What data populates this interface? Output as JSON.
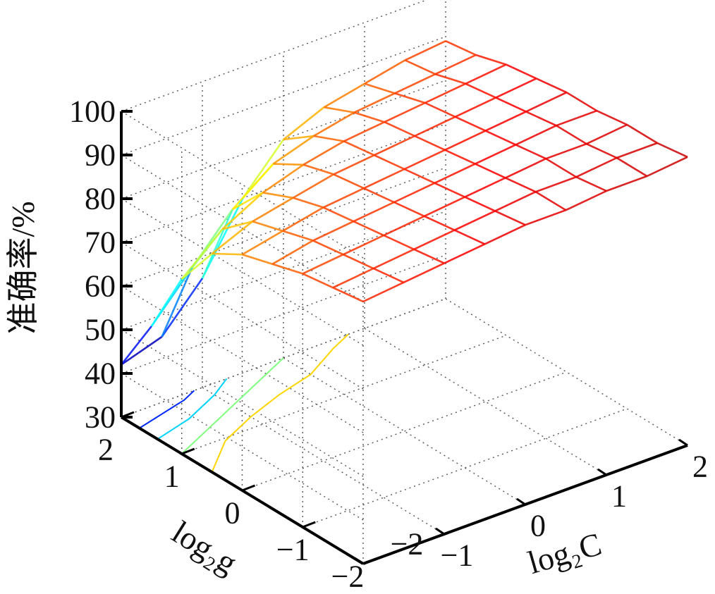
{
  "chart_data": {
    "type": "surface-mesh-with-contours",
    "xlabel": "log₂C",
    "ylabel": "log₂g",
    "zlabel": "准确率/%",
    "xlim": [
      -2,
      2
    ],
    "ylim": [
      -2,
      2
    ],
    "zlim": [
      30,
      100
    ],
    "grid": true,
    "colormap": "jet",
    "x_ticks": [
      "−2",
      "−1",
      "0",
      "1",
      "2"
    ],
    "x_tick_values": [
      -2,
      -1,
      0,
      1,
      2
    ],
    "y_ticks": [
      "−2",
      "−1",
      "0",
      "1",
      "2"
    ],
    "y_tick_values": [
      -2,
      -1,
      0,
      1,
      2
    ],
    "z_ticks": [
      "30",
      "40",
      "50",
      "60",
      "70",
      "80",
      "90",
      "100"
    ],
    "z_tick_values": [
      30,
      40,
      50,
      60,
      70,
      80,
      90,
      100
    ],
    "x": [
      -2,
      -1.5,
      -1,
      -0.5,
      0,
      0.5,
      1,
      1.5,
      2
    ],
    "y": [
      -2,
      -1.5,
      -1,
      -0.5,
      0,
      0.5,
      1,
      1.5,
      2
    ],
    "z": [
      [
        90,
        91,
        92,
        93,
        94,
        94,
        95,
        95,
        96
      ],
      [
        89,
        90,
        91,
        92,
        93,
        94,
        94,
        95,
        95
      ],
      [
        88,
        89,
        90,
        91,
        92,
        93,
        94,
        94,
        95
      ],
      [
        86,
        88,
        89,
        90,
        91,
        92,
        93,
        94,
        94
      ],
      [
        84,
        86,
        88,
        89,
        90,
        91,
        92,
        93,
        94
      ],
      [
        80,
        84,
        86,
        88,
        89,
        90,
        91,
        92,
        93
      ],
      [
        70,
        78,
        83,
        86,
        88,
        89,
        90,
        91,
        92
      ],
      [
        55,
        65,
        75,
        82,
        85,
        87,
        88,
        89,
        90
      ],
      [
        42,
        45,
        55,
        70,
        80,
        84,
        86,
        88,
        89
      ]
    ],
    "contours": [
      {
        "level": 50,
        "points": [
          [
            -2,
            1.7
          ],
          [
            -1.3,
            1.9
          ],
          [
            -1.1,
            2
          ]
        ]
      },
      {
        "level": 60,
        "points": [
          [
            -2,
            1.4
          ],
          [
            -1.5,
            1.55
          ],
          [
            -1,
            1.8
          ],
          [
            -0.7,
            2
          ]
        ]
      },
      {
        "level": 70,
        "points": [
          [
            -2,
            1.0
          ],
          [
            -1.5,
            1.25
          ],
          [
            -1,
            1.5
          ],
          [
            -0.5,
            1.75
          ],
          [
            0,
            2
          ]
        ]
      },
      {
        "level": 80,
        "points": [
          [
            -2,
            0.5
          ],
          [
            -1.5,
            0.95
          ],
          [
            -1,
            1.2
          ],
          [
            -0.5,
            1.4
          ],
          [
            0,
            1.55
          ],
          [
            0.5,
            1.85
          ],
          [
            0.8,
            2
          ]
        ]
      }
    ]
  }
}
